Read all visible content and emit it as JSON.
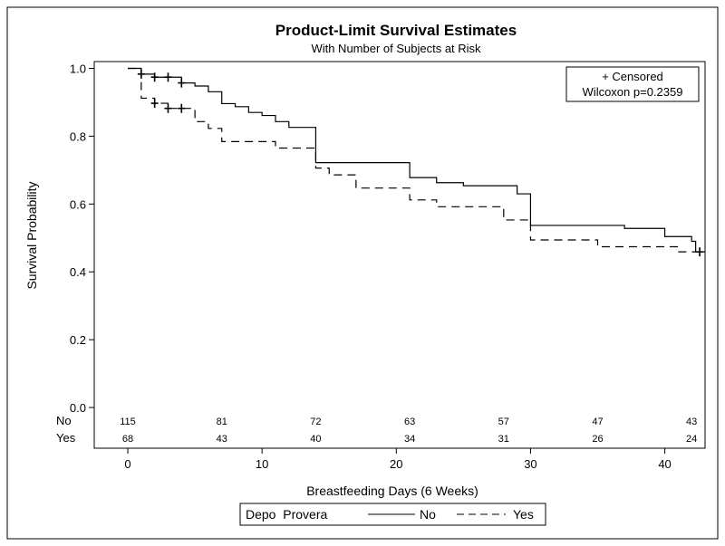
{
  "chart_data": {
    "type": "line",
    "title": "Product-Limit Survival Estimates",
    "subtitle": "With Number of Subjects at Risk",
    "xlabel": "Breastfeeding Days (6 Weeks)",
    "ylabel": "Survival Probability",
    "xlim": [
      -2.5,
      43
    ],
    "ylim": [
      -0.12,
      1.02
    ],
    "x_ticks": [
      0,
      10,
      20,
      30,
      40
    ],
    "y_ticks": [
      0.0,
      0.2,
      0.4,
      0.6,
      0.8,
      1.0
    ],
    "y_tick_labels": [
      "0.0",
      "0.2",
      "0.4",
      "0.6",
      "0.8",
      "1.0"
    ],
    "grid": false,
    "legend": {
      "title": "Depo  Provera",
      "placement": "bottom",
      "entries": [
        "No",
        "Yes"
      ]
    },
    "inset": {
      "censored_label": "+ Censored",
      "test_label": "Wilcoxon p=0.2359",
      "placement": "top-right"
    },
    "series": [
      {
        "name": "No",
        "dash": "solid",
        "color": "#000000",
        "steps": [
          [
            0,
            1.0
          ],
          [
            1,
            0.983
          ],
          [
            2,
            0.974
          ],
          [
            4,
            0.957
          ],
          [
            5,
            0.948
          ],
          [
            6,
            0.931
          ],
          [
            7,
            0.896
          ],
          [
            8,
            0.887
          ],
          [
            9,
            0.87
          ],
          [
            10,
            0.861
          ],
          [
            11,
            0.843
          ],
          [
            12,
            0.826
          ],
          [
            14,
            0.722
          ],
          [
            21,
            0.678
          ],
          [
            23,
            0.663
          ],
          [
            25,
            0.654
          ],
          [
            29,
            0.63
          ],
          [
            30,
            0.537
          ],
          [
            37,
            0.528
          ],
          [
            40,
            0.504
          ],
          [
            42,
            0.49
          ],
          [
            42.3,
            0.459
          ],
          [
            43,
            0.459
          ]
        ],
        "censored": [
          [
            1,
            0.983
          ],
          [
            2,
            0.974
          ],
          [
            3,
            0.974
          ],
          [
            4,
            0.957
          ],
          [
            42.6,
            0.459
          ]
        ]
      },
      {
        "name": "Yes",
        "dash": "dashed",
        "color": "#000000",
        "steps": [
          [
            0,
            1.0
          ],
          [
            1,
            0.912
          ],
          [
            2,
            0.897
          ],
          [
            3,
            0.882
          ],
          [
            5,
            0.843
          ],
          [
            6,
            0.823
          ],
          [
            7,
            0.784
          ],
          [
            11,
            0.765
          ],
          [
            14,
            0.706
          ],
          [
            15,
            0.686
          ],
          [
            17,
            0.647
          ],
          [
            21,
            0.612
          ],
          [
            23,
            0.592
          ],
          [
            28,
            0.553
          ],
          [
            30,
            0.494
          ],
          [
            35,
            0.474
          ],
          [
            41,
            0.459
          ],
          [
            43,
            0.459
          ]
        ],
        "censored": [
          [
            2,
            0.897
          ],
          [
            3,
            0.882
          ],
          [
            4,
            0.882
          ]
        ]
      }
    ],
    "at_risk": {
      "x": [
        0,
        7,
        14,
        21,
        28,
        35,
        42
      ],
      "rows": [
        {
          "label": "No",
          "values": [
            "115",
            "81",
            "72",
            "63",
            "57",
            "47",
            "43"
          ]
        },
        {
          "label": "Yes",
          "values": [
            "68",
            "43",
            "40",
            "34",
            "31",
            "26",
            "24"
          ]
        }
      ]
    }
  }
}
